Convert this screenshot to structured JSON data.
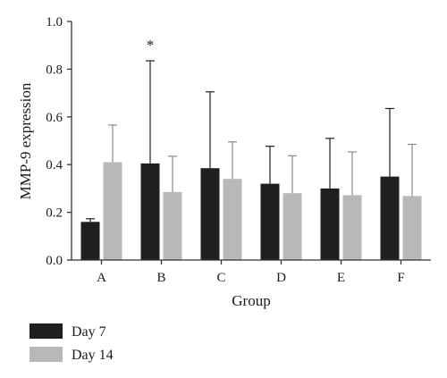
{
  "chart_data": {
    "type": "bar",
    "categories": [
      "A",
      "B",
      "C",
      "D",
      "E",
      "F"
    ],
    "series": [
      {
        "name": "Day 7",
        "color": "#1f1f1f",
        "values": [
          0.16,
          0.405,
          0.385,
          0.32,
          0.3,
          0.35
        ],
        "error": [
          0.013,
          0.43,
          0.32,
          0.157,
          0.21,
          0.285
        ]
      },
      {
        "name": "Day 14",
        "color": "#b8b8b8",
        "values": [
          0.41,
          0.285,
          0.34,
          0.28,
          0.272,
          0.268
        ],
        "error": [
          0.156,
          0.15,
          0.155,
          0.157,
          0.181,
          0.217
        ]
      }
    ],
    "xlabel": "Group",
    "ylabel": "MMP-9 expression",
    "ylim": [
      0,
      1.0
    ],
    "yticks": [
      "0.0",
      "0.2",
      "0.4",
      "0.6",
      "0.8",
      "1.0"
    ],
    "yticks_values": [
      0,
      0.2,
      0.4,
      0.6,
      0.8,
      1.0
    ],
    "annotations": [
      {
        "category": "B",
        "series": "Day 7",
        "text": "*"
      }
    ],
    "grid": false,
    "legend_position": "bottom-left"
  }
}
